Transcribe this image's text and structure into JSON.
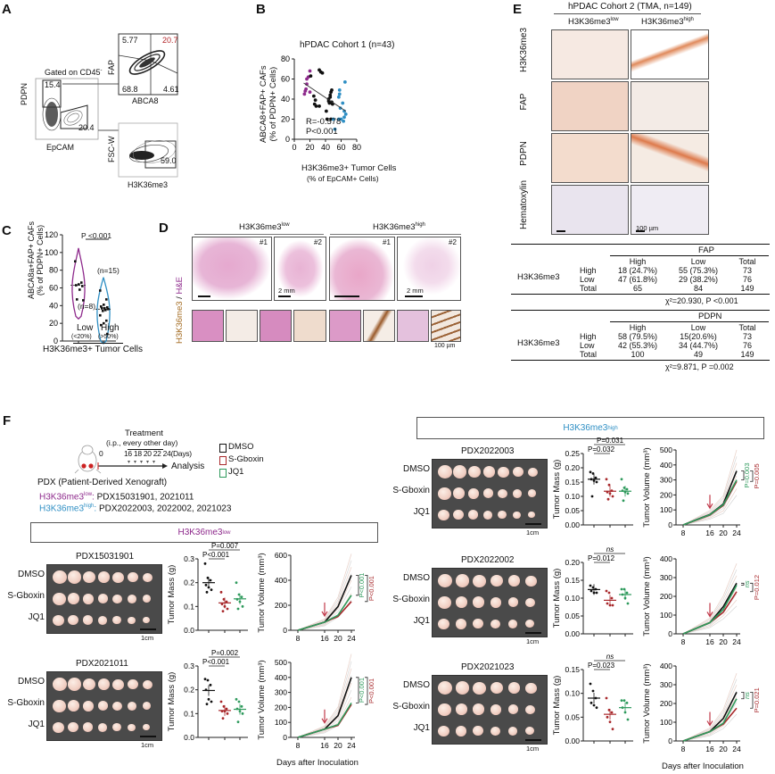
{
  "panels": {
    "A": {
      "label": "A",
      "gate_note": "Gated on CD45",
      "gate_sup": "-",
      "plot1": {
        "xlabel": "EpCAM",
        "ylabel": "PDPN",
        "gate_pdpn": "15.4",
        "gate_epcam": "20.4"
      },
      "plot2": {
        "xlabel": "ABCA8",
        "ylabel": "FAP",
        "q_ul": "5.77",
        "q_ur": "20.7",
        "q_ll": "68.8",
        "q_lr": "4.61"
      },
      "plot3": {
        "xlabel": "H3K36me3",
        "ylabel": "FSC-W",
        "gate": "59.0"
      }
    },
    "B": {
      "label": "B",
      "title": "hPDAC Cohort 1 (n=43)",
      "ylabel1": "ABCA8+FAP+ CAFs",
      "ylabel2": "(% of PDPN+ Cells)",
      "xlabel1": "H3K36me3+ Tumor Cells",
      "xlabel2": "(% of EpCAM+ Cells)",
      "stat_r": "R=-0.578",
      "stat_p": "P<0.001"
    },
    "C": {
      "label": "C",
      "ylabel1": "ABCA8a+FAP+ CAFs",
      "ylabel2": "(% of PDPN+ Cells)",
      "pval": "P <0.001",
      "n_low": "(n=8)",
      "n_high": "(n=15)",
      "cat_low": "Low",
      "cat_high": "High",
      "cat_low_sub": "(<20%)",
      "cat_high_sub": "(>50%)",
      "xlabel": "H3K36me3+ Tumor Cells"
    },
    "D": {
      "label": "D",
      "group_low": "H3K36me3",
      "group_low_sup": "low",
      "group_high": "H3K36me3",
      "group_high_sup": "high",
      "ylabel_a": "H3K36me3",
      "ylabel_sep": " / ",
      "ylabel_b": "H&E",
      "sample1": "#1",
      "sample2": "#2",
      "scale_mm": "2 mm",
      "scale_um": "100 µm"
    },
    "E": {
      "label": "E",
      "title": "hPDAC Cohort 2 (TMA, n=149)",
      "col_low": "H3K36me3",
      "col_low_sup": "low",
      "col_high": "H3K36me3",
      "col_high_sup": "high",
      "rows": [
        "H3K36me3",
        "FAP",
        "PDPN",
        "Hematoxylin"
      ],
      "scale": "100 µm",
      "tables": [
        {
          "marker": "FAP",
          "row_group": "H3K36me3",
          "cols": [
            "High",
            "Low",
            "Total"
          ],
          "rows": [
            {
              "name": "High",
              "cells": [
                "18 (24.7%)",
                "55 (75.3%)",
                "73"
              ]
            },
            {
              "name": "Low",
              "cells": [
                "47 (61.8%)",
                "29 (38.2%)",
                "76"
              ]
            },
            {
              "name": "Total",
              "cells": [
                "65",
                "84",
                "149"
              ]
            }
          ],
          "stat": "χ²=20.930, P <0.001"
        },
        {
          "marker": "PDPN",
          "row_group": "H3K36me3",
          "cols": [
            "High",
            "Low",
            "Total"
          ],
          "rows": [
            {
              "name": "High",
              "cells": [
                "58 (79.5%)",
                "15(20.6%)",
                "73"
              ]
            },
            {
              "name": "Low",
              "cells": [
                "42 (55.3%)",
                "34 (44.7%)",
                "76"
              ]
            },
            {
              "name": "Total",
              "cells": [
                "100",
                "49",
                "149"
              ]
            }
          ],
          "stat": "χ²=9.871, P =0.002"
        }
      ]
    },
    "F": {
      "label": "F",
      "treatment": "Treatment",
      "treatment_sub": "(i.p., every other day)",
      "day0": "0",
      "days": "16 18 20 22 24(Days)",
      "analysis": "Analysis",
      "pdx": "PDX (Patient-Derived Xenograft)",
      "low_label": "H3K36me3",
      "low_sup": "low",
      "low_list": "PDX15031901, 2021011",
      "high_label": "H3K36me3",
      "high_sup": "high",
      "high_list": "PDX2022003, 2022002, 2021023",
      "legend": [
        {
          "name": "DMSO",
          "color": "#111111"
        },
        {
          "name": "S-Gboxin",
          "color": "#a8282b"
        },
        {
          "name": "JQ1",
          "color": "#2e9a5c"
        }
      ],
      "group_header_low": "H3K36me3",
      "group_header_low_sup": "low",
      "group_header_high": "H3K36me3",
      "group_header_high_sup": "high",
      "row_labels": [
        "DMSO",
        "S-Gboxin",
        "JQ1"
      ],
      "scale": "1cm",
      "mass_ylabel": "Tumor Mass (g)",
      "vol_ylabel": "Tumor Volume (mm³)",
      "vol_xlabel": "Days after Inoculation"
    }
  },
  "colors": {
    "low": "#8e2a8c",
    "high": "#2f8fc4",
    "dmso": "#111111",
    "sgboxin": "#a8282b",
    "jq1": "#2e9a5c"
  },
  "chart_data": [
    {
      "id": "B",
      "type": "scatter",
      "title": "hPDAC Cohort 1 (n=43)",
      "xlabel": "H3K36me3+ Tumor Cells (% of EpCAM+ Cells)",
      "ylabel": "ABCA8+FAP+ CAFs (% of PDPN+ Cells)",
      "xlim": [
        0,
        80
      ],
      "ylim": [
        0,
        80
      ],
      "xticks": [
        0,
        20,
        40,
        60,
        80
      ],
      "yticks": [
        0,
        20,
        40,
        60,
        80
      ],
      "series": [
        {
          "name": "low",
          "color": "#8e2a8c",
          "points": [
            [
              13,
              45
            ],
            [
              14,
              48
            ],
            [
              15,
              50
            ],
            [
              16,
              55
            ],
            [
              16,
              60
            ],
            [
              18,
              62
            ],
            [
              20,
              68
            ],
            [
              20,
              47
            ]
          ]
        },
        {
          "name": "mid",
          "color": "#111111",
          "points": [
            [
              21,
              63
            ],
            [
              25,
              43
            ],
            [
              26,
              35
            ],
            [
              27,
              39
            ],
            [
              28,
              33
            ],
            [
              32,
              33
            ],
            [
              32,
              69
            ],
            [
              34,
              67
            ],
            [
              36,
              66
            ],
            [
              41,
              28
            ],
            [
              42,
              20
            ],
            [
              44,
              38
            ],
            [
              44,
              40
            ],
            [
              45,
              36
            ],
            [
              46,
              42
            ],
            [
              46,
              44
            ],
            [
              47,
              47
            ],
            [
              48,
              49
            ],
            [
              48,
              37
            ],
            [
              47,
              20
            ],
            [
              49,
              35
            ]
          ]
        },
        {
          "name": "high",
          "color": "#2f8fc4",
          "points": [
            [
              50,
              20
            ],
            [
              52,
              10
            ],
            [
              57,
              42
            ],
            [
              57,
              20
            ],
            [
              58,
              49
            ],
            [
              58,
              45
            ],
            [
              59,
              31
            ],
            [
              60,
              20
            ],
            [
              62,
              36
            ],
            [
              63,
              18
            ],
            [
              64,
              22
            ],
            [
              64,
              28
            ],
            [
              65,
              57
            ],
            [
              66,
              25
            ]
          ]
        }
      ],
      "trendline": [
        [
          12,
          56
        ],
        [
          66,
          28
        ]
      ]
    },
    {
      "id": "C",
      "type": "violin",
      "xlabel": "H3K36me3+ Tumor Cells",
      "ylabel": "ABCA8a+FAP+ CAFs (% of PDPN+ Cells)",
      "ylim": [
        0,
        120
      ],
      "yticks": [
        0,
        20,
        40,
        60,
        80,
        100,
        120
      ],
      "categories": [
        "Low",
        "High"
      ],
      "series": [
        {
          "name": "Low",
          "color": "#8e2a8c",
          "values": [
            90,
            66,
            64,
            63,
            62,
            58,
            47,
            46
          ]
        },
        {
          "name": "High",
          "color": "#2f8fc4",
          "values": [
            57,
            47,
            41,
            39,
            38,
            37,
            37,
            36,
            35,
            34,
            29,
            23,
            20,
            18,
            8
          ]
        }
      ]
    },
    {
      "id": "F-mass-PDX15031901",
      "type": "scatter",
      "ylabel": "Tumor Mass (g)",
      "ylim": [
        0,
        0.3
      ],
      "yticks": [
        "0.0",
        "0.1",
        "0.2",
        "0.3"
      ],
      "categories": [
        "DMSO",
        "S-Gboxin",
        "JQ1"
      ],
      "series": [
        {
          "name": "DMSO",
          "values": [
            0.28,
            0.22,
            0.21,
            0.19,
            0.18,
            0.17,
            0.16
          ],
          "mean": 0.2
        },
        {
          "name": "S-Gboxin",
          "values": [
            0.16,
            0.13,
            0.12,
            0.11,
            0.1,
            0.09,
            0.08
          ],
          "mean": 0.115
        },
        {
          "name": "JQ1",
          "values": [
            0.2,
            0.15,
            0.14,
            0.13,
            0.12,
            0.1,
            0.09
          ],
          "mean": 0.132
        }
      ],
      "annotations": [
        "P=0.007",
        "P<0.001"
      ]
    },
    {
      "id": "F-vol-PDX15031901",
      "type": "line",
      "ylabel": "Tumor Volume (mm³)",
      "x": [
        8,
        16,
        20,
        24
      ],
      "ylim": [
        0,
        600
      ],
      "yticks": [
        0,
        200,
        400,
        600
      ],
      "series": [
        {
          "name": "DMSO",
          "values": [
            0,
            65,
            190,
            440
          ]
        },
        {
          "name": "S-Gboxin",
          "values": [
            0,
            65,
            110,
            230
          ]
        },
        {
          "name": "JQ1",
          "values": [
            0,
            65,
            120,
            280
          ]
        }
      ],
      "annotations": [
        "P<0.001",
        "P<0.001"
      ]
    },
    {
      "id": "F-mass-PDX2021011",
      "type": "scatter",
      "ylabel": "Tumor Mass (g)",
      "ylim": [
        0,
        0.3
      ],
      "yticks": [
        "0.0",
        "0.1",
        "0.2",
        "0.3"
      ],
      "categories": [
        "DMSO",
        "S-Gboxin",
        "JQ1"
      ],
      "series": [
        {
          "name": "DMSO",
          "values": [
            0.245,
            0.24,
            0.22,
            0.2,
            0.16,
            0.15,
            0.14
          ],
          "mean": 0.197
        },
        {
          "name": "S-Gboxin",
          "values": [
            0.15,
            0.13,
            0.12,
            0.11,
            0.11,
            0.1,
            0.08
          ],
          "mean": 0.113
        },
        {
          "name": "JQ1",
          "values": [
            0.16,
            0.15,
            0.13,
            0.12,
            0.11,
            0.1,
            0.065
          ],
          "mean": 0.118
        }
      ],
      "annotations": [
        "P=0.002",
        "P<0.001"
      ]
    },
    {
      "id": "F-vol-PDX2021011",
      "type": "line",
      "ylabel": "Tumor Volume (mm³)",
      "xlabel": "Days after Inoculation",
      "x": [
        8,
        16,
        20,
        24
      ],
      "ylim": [
        0,
        500
      ],
      "yticks": [
        0,
        100,
        200,
        300,
        400,
        500
      ],
      "series": [
        {
          "name": "DMSO",
          "values": [
            0,
            55,
            145,
            400
          ]
        },
        {
          "name": "S-Gboxin",
          "values": [
            0,
            55,
            80,
            220
          ]
        },
        {
          "name": "JQ1",
          "values": [
            0,
            55,
            85,
            230
          ]
        }
      ],
      "annotations": [
        "P<0.001",
        "P<0.001"
      ]
    },
    {
      "id": "F-mass-PDX2022003",
      "type": "scatter",
      "ylabel": "Tumor Mass (g)",
      "ylim": [
        0,
        0.25
      ],
      "yticks": [
        "0.00",
        "0.05",
        "0.10",
        "0.15",
        "0.20",
        "0.25"
      ],
      "categories": [
        "DMSO",
        "S-Gboxin",
        "JQ1"
      ],
      "series": [
        {
          "name": "DMSO",
          "values": [
            0.185,
            0.18,
            0.165,
            0.16,
            0.155,
            0.15,
            0.1
          ],
          "mean": 0.16
        },
        {
          "name": "S-Gboxin",
          "values": [
            0.16,
            0.14,
            0.12,
            0.115,
            0.11,
            0.1,
            0.09
          ],
          "mean": 0.118
        },
        {
          "name": "JQ1",
          "values": [
            0.16,
            0.13,
            0.125,
            0.12,
            0.115,
            0.11,
            0.085
          ],
          "mean": 0.118
        }
      ],
      "annotations": [
        "P=0.031",
        "P=0.032"
      ]
    },
    {
      "id": "F-vol-PDX2022003",
      "type": "line",
      "ylabel": "Tumor Volume (mm³)",
      "x": [
        8,
        16,
        20,
        24
      ],
      "ylim": [
        0,
        500
      ],
      "yticks": [
        0,
        100,
        200,
        300,
        400,
        500
      ],
      "series": [
        {
          "name": "DMSO",
          "values": [
            0,
            70,
            140,
            360
          ]
        },
        {
          "name": "S-Gboxin",
          "values": [
            0,
            65,
            130,
            290
          ]
        },
        {
          "name": "JQ1",
          "values": [
            0,
            68,
            135,
            300
          ]
        }
      ],
      "annotations": [
        "P=0.003",
        "P=0.005"
      ]
    },
    {
      "id": "F-mass-PDX2022002",
      "type": "scatter",
      "ylabel": "Tumor Mass (g)",
      "ylim": [
        0,
        0.2
      ],
      "yticks": [
        "0.00",
        "0.05",
        "0.10",
        "0.15",
        "0.20"
      ],
      "categories": [
        "DMSO",
        "S-Gboxin",
        "JQ1"
      ],
      "series": [
        {
          "name": "DMSO",
          "values": [
            0.135,
            0.13,
            0.125,
            0.12,
            0.115,
            0.115
          ],
          "mean": 0.124
        },
        {
          "name": "S-Gboxin",
          "values": [
            0.12,
            0.115,
            0.1,
            0.085,
            0.08,
            0.08
          ],
          "mean": 0.094
        },
        {
          "name": "JQ1",
          "values": [
            0.125,
            0.125,
            0.115,
            0.11,
            0.1,
            0.085
          ],
          "mean": 0.11
        }
      ],
      "annotations": [
        "ns",
        "P=0.012"
      ]
    },
    {
      "id": "F-vol-PDX2022002",
      "type": "line",
      "ylabel": "Tumor Volume (mm³)",
      "x": [
        8,
        16,
        20,
        24
      ],
      "ylim": [
        0,
        400
      ],
      "yticks": [
        0,
        100,
        200,
        300,
        400
      ],
      "series": [
        {
          "name": "DMSO",
          "values": [
            0,
            60,
            145,
            270
          ]
        },
        {
          "name": "S-Gboxin",
          "values": [
            0,
            60,
            115,
            225
          ]
        },
        {
          "name": "JQ1",
          "values": [
            0,
            60,
            130,
            260
          ]
        }
      ],
      "annotations": [
        "ns",
        "P=0.012"
      ]
    },
    {
      "id": "F-mass-PDX2021023",
      "type": "scatter",
      "ylabel": "Tumor Mass (g)",
      "ylim": [
        0,
        0.15
      ],
      "yticks": [
        "0.00",
        "0.05",
        "0.10",
        "0.15"
      ],
      "categories": [
        "DMSO",
        "S-Gboxin",
        "JQ1"
      ],
      "series": [
        {
          "name": "DMSO",
          "values": [
            0.12,
            0.105,
            0.09,
            0.08,
            0.075,
            0.07
          ],
          "mean": 0.09
        },
        {
          "name": "S-Gboxin",
          "values": [
            0.09,
            0.065,
            0.06,
            0.05,
            0.04,
            0.025
          ],
          "mean": 0.056
        },
        {
          "name": "JQ1",
          "values": [
            0.085,
            0.085,
            0.08,
            0.07,
            0.06,
            0.045
          ],
          "mean": 0.07
        }
      ],
      "annotations": [
        "ns",
        "P=0.023"
      ]
    },
    {
      "id": "F-vol-PDX2021023",
      "type": "line",
      "ylabel": "Tumor Volume (mm³)",
      "xlabel": "Days after Inoculation",
      "x": [
        8,
        16,
        20,
        24
      ],
      "ylim": [
        0,
        400
      ],
      "yticks": [
        0,
        100,
        200,
        300,
        400
      ],
      "series": [
        {
          "name": "DMSO",
          "values": [
            0,
            50,
            120,
            260
          ]
        },
        {
          "name": "S-Gboxin",
          "values": [
            0,
            50,
            90,
            175
          ]
        },
        {
          "name": "JQ1",
          "values": [
            0,
            50,
            95,
            225
          ]
        }
      ],
      "annotations": [
        "ns",
        "P=0.021"
      ]
    }
  ],
  "pdx_titles": [
    "PDX15031901",
    "PDX2021011",
    "PDX2022003",
    "PDX2022002",
    "PDX2021023"
  ]
}
